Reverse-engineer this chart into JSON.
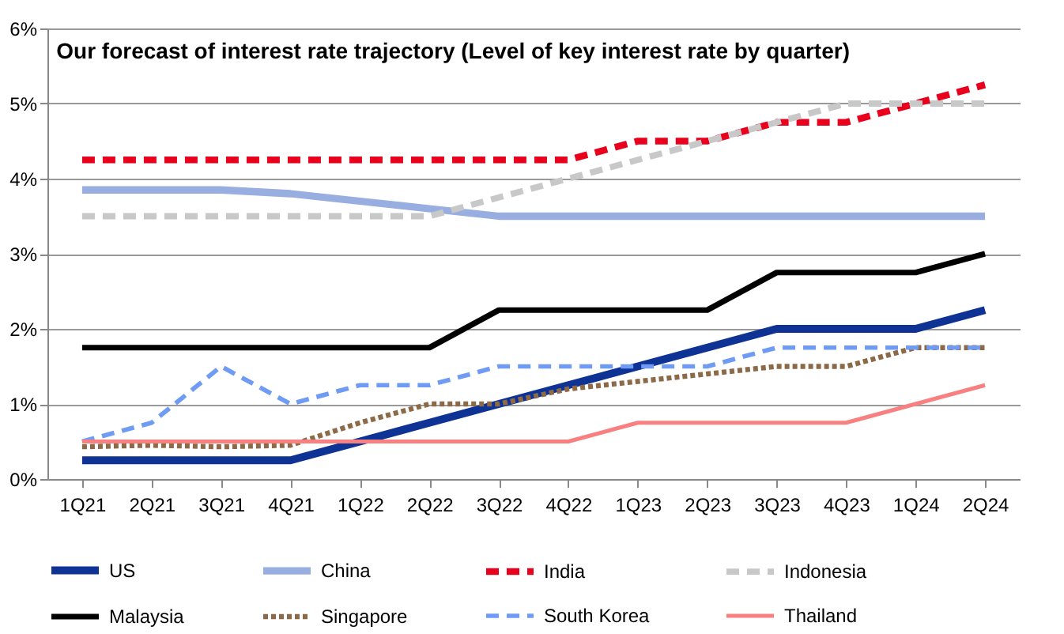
{
  "chart_data": {
    "type": "line",
    "title": "Our forecast of interest rate trajectory (Level of key interest rate by quarter)",
    "categories": [
      "1Q21",
      "2Q21",
      "3Q21",
      "4Q21",
      "1Q22",
      "2Q22",
      "3Q22",
      "4Q22",
      "1Q23",
      "2Q23",
      "3Q23",
      "4Q23",
      "1Q24",
      "2Q24"
    ],
    "ylim": [
      0,
      6
    ],
    "yticks": [
      {
        "value": 0,
        "label": "0%"
      },
      {
        "value": 1,
        "label": "1%"
      },
      {
        "value": 2,
        "label": "2%"
      },
      {
        "value": 3,
        "label": "3%"
      },
      {
        "value": 4,
        "label": "4%"
      },
      {
        "value": 5,
        "label": "5%"
      },
      {
        "value": 6,
        "label": "6%"
      }
    ],
    "grid": "y",
    "legend": "bottom",
    "marker": "none",
    "series": [
      {
        "name": "US",
        "color": "#0f3395",
        "line_style": "solid",
        "values": [
          0.25,
          0.25,
          0.25,
          0.25,
          0.5,
          0.75,
          1,
          1.25,
          1.5,
          1.75,
          2,
          2,
          2,
          2.25
        ]
      },
      {
        "name": "China",
        "color": "#98aee0",
        "line_style": "solid",
        "values": [
          3.85,
          3.85,
          3.85,
          3.8,
          3.7,
          3.6,
          3.5,
          3.5,
          3.5,
          3.5,
          3.5,
          3.5,
          3.5,
          3.5
        ]
      },
      {
        "name": "India",
        "color": "#e8001c",
        "line_style": "dashed",
        "values": [
          4.25,
          4.25,
          4.25,
          4.25,
          4.25,
          4.25,
          4.25,
          4.25,
          4.5,
          4.5,
          4.75,
          4.75,
          5,
          5.25
        ]
      },
      {
        "name": "Indonesia",
        "color": "#c8c8c8",
        "line_style": "dashed",
        "values": [
          3.5,
          3.5,
          3.5,
          3.5,
          3.5,
          3.5,
          3.75,
          4,
          4.25,
          4.5,
          4.75,
          5,
          5,
          5
        ]
      },
      {
        "name": "Malaysia",
        "color": "#000000",
        "line_style": "solid",
        "values": [
          1.75,
          1.75,
          1.75,
          1.75,
          1.75,
          1.75,
          2.25,
          2.25,
          2.25,
          2.25,
          2.75,
          2.75,
          2.75,
          3
        ]
      },
      {
        "name": "Singapore",
        "color": "#8c6a48",
        "line_style": "dotted",
        "values": [
          0.43,
          0.45,
          0.43,
          0.45,
          0.75,
          1,
          1,
          1.2,
          1.3,
          1.4,
          1.5,
          1.5,
          1.75,
          1.75
        ]
      },
      {
        "name": "South Korea",
        "color": "#6f9bf5",
        "line_style": "dashed",
        "values": [
          0.5,
          0.75,
          1.5,
          1,
          1.25,
          1.25,
          1.5,
          1.5,
          1.5,
          1.5,
          1.75,
          1.75,
          1.75,
          1.75
        ]
      },
      {
        "name": "Thailand",
        "color": "#f88080",
        "line_style": "solid",
        "values": [
          0.5,
          0.5,
          0.5,
          0.5,
          0.5,
          0.5,
          0.5,
          0.5,
          0.75,
          0.75,
          0.75,
          0.75,
          1,
          1.25
        ]
      }
    ]
  }
}
